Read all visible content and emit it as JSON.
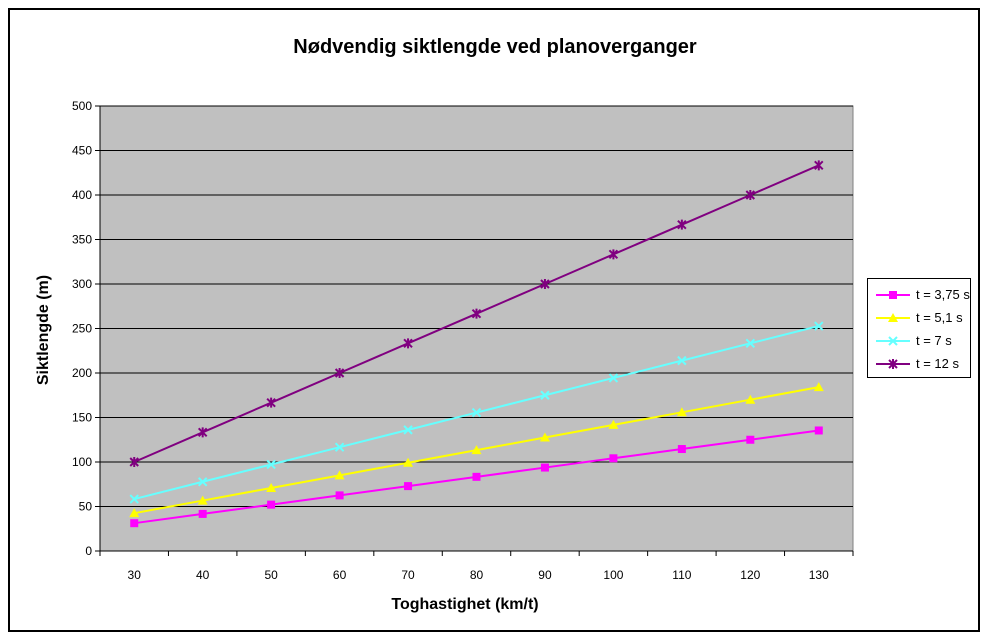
{
  "chart_data": {
    "type": "line",
    "title": "Nødvendig siktlengde ved planoverganger",
    "xlabel": "Toghastighet (km/t)",
    "ylabel": "Siktlengde (m)",
    "x": [
      30,
      40,
      50,
      60,
      70,
      80,
      90,
      100,
      110,
      120,
      130
    ],
    "ylim": [
      0,
      500
    ],
    "yticks": [
      0,
      50,
      100,
      150,
      200,
      250,
      300,
      350,
      400,
      450,
      500
    ],
    "grid": "horizontal",
    "legend_position": "right",
    "plot_background": "#c0c0c0",
    "series": [
      {
        "name": "t = 3,75 s",
        "color": "#ff00ff",
        "marker": "square",
        "values": [
          31.25,
          41.67,
          52.08,
          62.5,
          72.92,
          83.33,
          93.75,
          104.17,
          114.58,
          125.0,
          135.42
        ]
      },
      {
        "name": "t = 5,1 s",
        "color": "#ffff00",
        "marker": "triangle",
        "values": [
          42.5,
          56.67,
          70.83,
          85.0,
          99.17,
          113.33,
          127.5,
          141.67,
          155.83,
          170.0,
          184.17
        ]
      },
      {
        "name": "t = 7 s",
        "color": "#66ffff",
        "marker": "x",
        "values": [
          58.33,
          77.78,
          97.22,
          116.67,
          136.11,
          155.56,
          175.0,
          194.44,
          213.89,
          233.33,
          252.78
        ]
      },
      {
        "name": "t = 12 s",
        "color": "#800080",
        "marker": "star",
        "values": [
          100.0,
          133.33,
          166.67,
          200.0,
          233.33,
          266.67,
          300.0,
          333.33,
          366.67,
          400.0,
          433.33
        ]
      }
    ]
  }
}
